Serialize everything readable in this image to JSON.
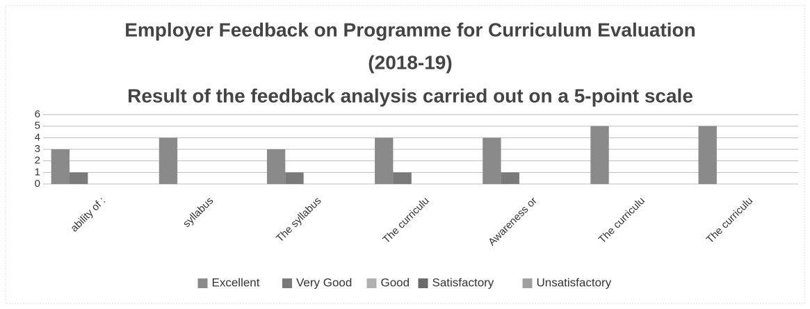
{
  "chart_data": {
    "type": "bar",
    "title": "Employer Feedback on Programme for Curriculum Evaluation",
    "subtitle": "(2018-19)",
    "subtitle2": "Result of the feedback analysis carried out on a 5-point scale",
    "categories": [
      "ability of :",
      "syllabus",
      "The syllabus",
      "The curriculu",
      "Awareness or",
      "The curriculu",
      "The curriculu"
    ],
    "series": [
      {
        "name": "Excellent",
        "color": "#8a8a8a",
        "values": [
          3,
          4,
          3,
          4,
          4,
          5,
          5
        ]
      },
      {
        "name": "Very Good",
        "color": "#7a7a7a",
        "values": [
          1,
          0,
          1,
          1,
          1,
          0,
          0
        ]
      },
      {
        "name": "Good",
        "color": "#b0b0b0",
        "values": [
          0,
          0,
          0,
          0,
          0,
          0,
          0
        ]
      },
      {
        "name": "Satisfactory",
        "color": "#6a6a6a",
        "values": [
          0,
          0,
          0,
          0,
          0,
          0,
          0
        ]
      },
      {
        "name": "Unsatisfactory",
        "color": "#a0a0a0",
        "values": [
          0,
          0,
          0,
          0,
          0,
          0,
          0
        ]
      }
    ],
    "ylim": [
      0,
      6
    ],
    "yticks": [
      0,
      1,
      2,
      3,
      4,
      5,
      6
    ],
    "grid": true,
    "legend": "bottom"
  }
}
